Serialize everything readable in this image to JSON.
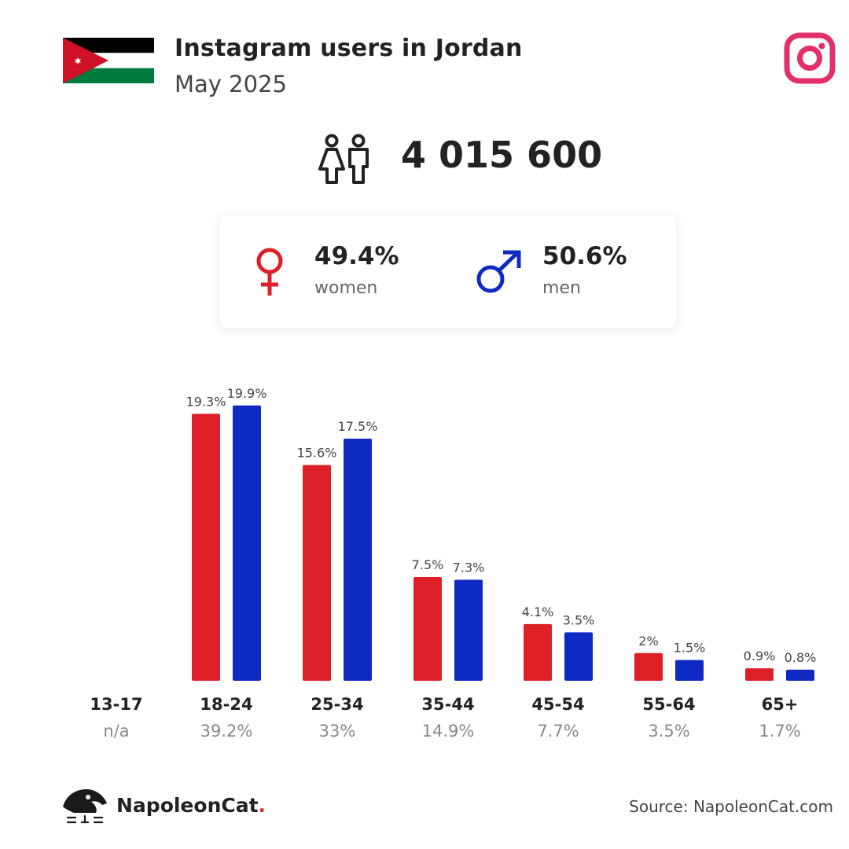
{
  "header": {
    "title": "Instagram users in Jordan",
    "subtitle": "May 2025",
    "flag_icon": "jordan-flag-icon",
    "platform_icon": "instagram-icon"
  },
  "total": {
    "value": "4 015 600",
    "icon": "people-icon"
  },
  "gender": {
    "women": {
      "pct": "49.4%",
      "label": "women",
      "icon": "female-icon",
      "color": "#dd2028"
    },
    "men": {
      "pct": "50.6%",
      "label": "men",
      "icon": "male-icon",
      "color": "#0e2ac3"
    }
  },
  "chart_data": {
    "type": "bar",
    "categories": [
      "13-17",
      "18-24",
      "25-34",
      "35-44",
      "45-54",
      "55-64",
      "65+"
    ],
    "category_totals": [
      "n/a",
      "39.2%",
      "33%",
      "14.9%",
      "7.7%",
      "3.5%",
      "1.7%"
    ],
    "series": [
      {
        "color": "#dd2028",
        "values": [
          null,
          19.3,
          15.6,
          7.5,
          4.1,
          2,
          0.9
        ],
        "labels": [
          "",
          "19.3%",
          "15.6%",
          "7.5%",
          "4.1%",
          "2%",
          "0.9%"
        ]
      },
      {
        "color": "#0e2ac3",
        "values": [
          null,
          19.9,
          17.5,
          7.3,
          3.5,
          1.5,
          0.8
        ],
        "labels": [
          "",
          "19.9%",
          "17.5%",
          "7.3%",
          "3.5%",
          "1.5%",
          "0.8%"
        ]
      }
    ],
    "ylim": [
      0,
      20
    ]
  },
  "footer": {
    "brand_name": "NapoleonCat",
    "brand_dot": ".",
    "brand_icon": "napoleoncat-logo-icon",
    "source": "Source: NapoleonCat.com"
  }
}
